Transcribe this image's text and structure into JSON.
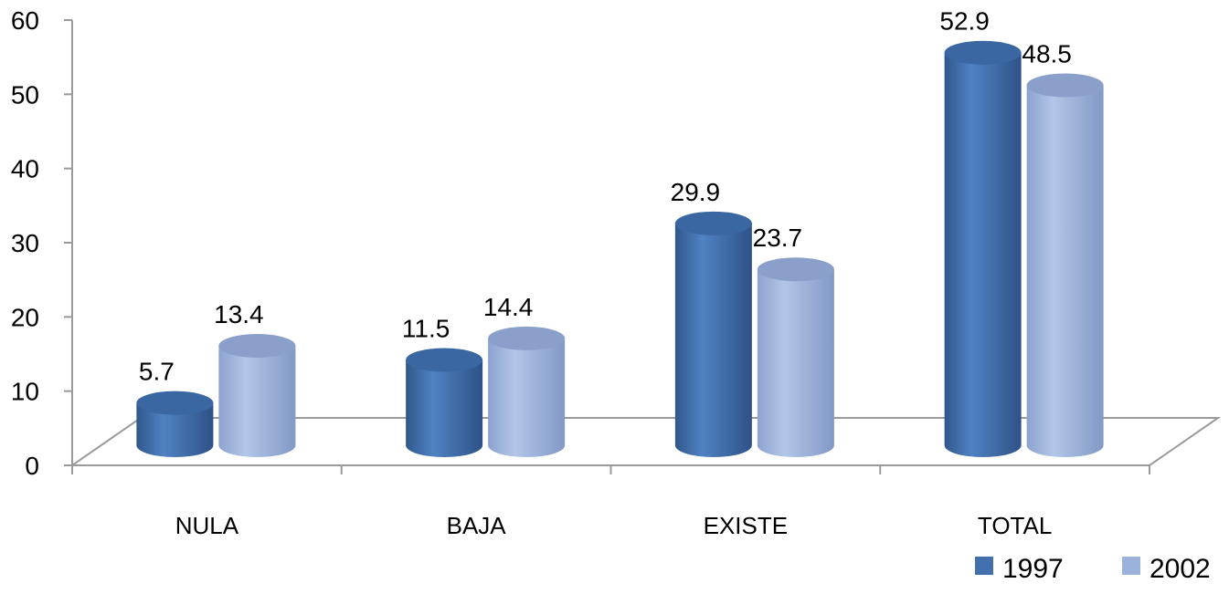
{
  "chart_data": {
    "type": "bar",
    "title": "",
    "xlabel": "",
    "ylabel": "",
    "categories": [
      "NULA",
      "BAJA",
      "EXISTE",
      "TOTAL"
    ],
    "series": [
      {
        "name": "1997",
        "values": [
          5.7,
          11.5,
          29.9,
          52.9
        ],
        "color": "#4170AC"
      },
      {
        "name": "2002",
        "values": [
          13.4,
          14.4,
          23.7,
          48.5
        ],
        "color": "#9BB2DA"
      }
    ],
    "data_labels": {
      "1997": [
        "5.7",
        "11.5",
        "29.9",
        "52.9"
      ],
      "2002": [
        "13.4",
        "14.4",
        "23.7",
        "48.5"
      ]
    },
    "ylim": [
      0,
      60
    ],
    "yticks": [
      "0",
      "10",
      "20",
      "30",
      "40",
      "50",
      "60"
    ],
    "grid": false,
    "style": "3d-cylinder",
    "legend_position": "bottom-right"
  }
}
